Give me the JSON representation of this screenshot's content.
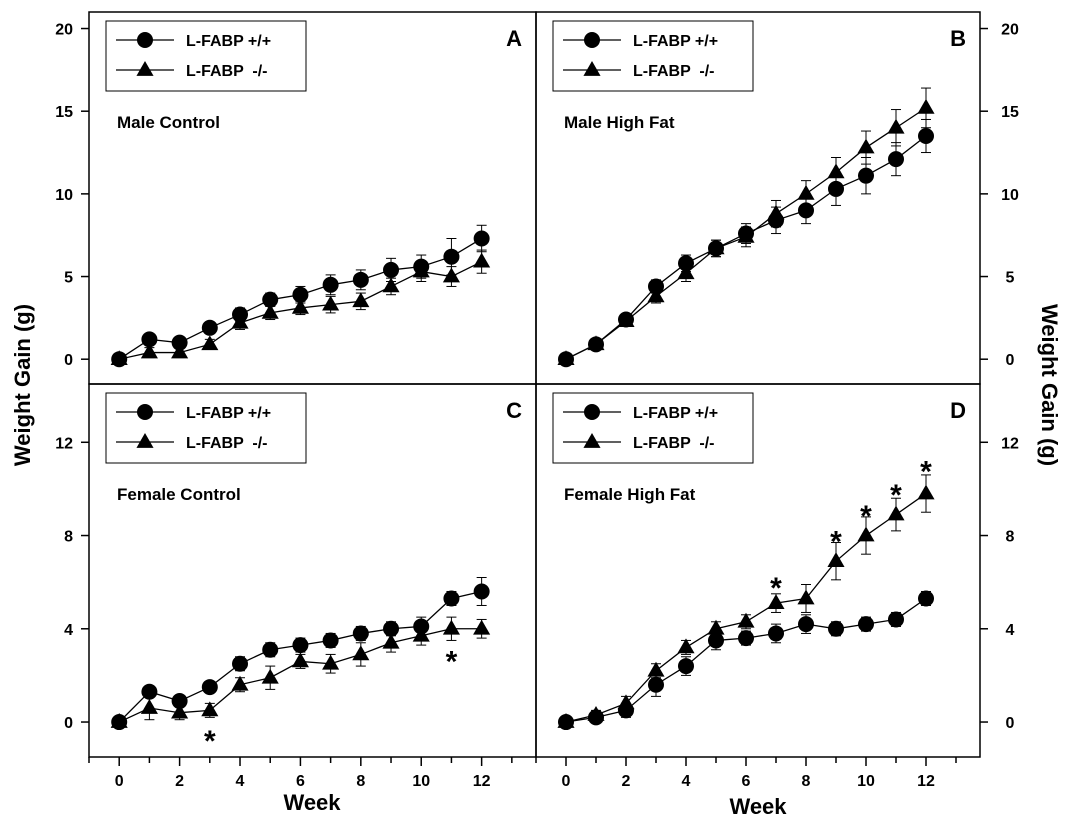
{
  "chart_data": {
    "type": "line",
    "layout": "2x2 grid of panels sharing x axis",
    "xlabel": "Week",
    "ylabel_left": "Weight Gain (g)",
    "ylabel_right": "Weight Gain (g)",
    "x_ticks": [
      0,
      2,
      4,
      6,
      8,
      10,
      12
    ],
    "xlim": [
      -1,
      13.8
    ],
    "legend": [
      "L-FABP +/+",
      "L-FABP  -/-"
    ],
    "legend_position": "top-left of each panel",
    "grid": false,
    "colors": {
      "line": "#000000",
      "marker": "#000000",
      "background": "#ffffff"
    },
    "panels": [
      {
        "letter": "A",
        "title": "Male Control",
        "ylim": [
          -1.5,
          21
        ],
        "y_ticks": [
          0,
          5,
          10,
          15,
          20
        ],
        "series": [
          {
            "name": "L-FABP +/+",
            "marker": "circle",
            "x": [
              0,
              1,
              2,
              3,
              4,
              5,
              6,
              7,
              8,
              9,
              10,
              11,
              12
            ],
            "y": [
              0,
              1.2,
              1.0,
              1.9,
              2.7,
              3.6,
              3.9,
              4.5,
              4.8,
              5.4,
              5.6,
              6.2,
              7.3
            ],
            "err": [
              0.1,
              0.3,
              0.3,
              0.3,
              0.4,
              0.4,
              0.5,
              0.6,
              0.6,
              0.7,
              0.7,
              1.1,
              0.8
            ]
          },
          {
            "name": "L-FABP  -/-",
            "marker": "triangle",
            "x": [
              0,
              1,
              2,
              3,
              4,
              5,
              6,
              7,
              8,
              9,
              10,
              11,
              12
            ],
            "y": [
              0,
              0.4,
              0.4,
              0.9,
              2.2,
              2.8,
              3.1,
              3.3,
              3.5,
              4.4,
              5.3,
              5.0,
              5.9
            ],
            "err": [
              0.1,
              0.3,
              0.3,
              0.3,
              0.4,
              0.4,
              0.4,
              0.5,
              0.5,
              0.5,
              0.6,
              0.6,
              0.7
            ]
          }
        ],
        "significance_marks": []
      },
      {
        "letter": "B",
        "title": "Male High Fat",
        "ylim": [
          -1.5,
          21
        ],
        "y_ticks": [
          0,
          5,
          10,
          15,
          20
        ],
        "series": [
          {
            "name": "L-FABP +/+",
            "marker": "circle",
            "x": [
              0,
              1,
              2,
              3,
              4,
              5,
              6,
              7,
              8,
              9,
              10,
              11,
              12
            ],
            "y": [
              0,
              0.9,
              2.4,
              4.4,
              5.8,
              6.7,
              7.6,
              8.4,
              9.0,
              10.3,
              11.1,
              12.1,
              13.5
            ],
            "err": [
              0.1,
              0.2,
              0.3,
              0.4,
              0.5,
              0.5,
              0.6,
              0.8,
              0.8,
              1.0,
              1.1,
              1.0,
              1.0
            ]
          },
          {
            "name": "L-FABP  -/-",
            "marker": "triangle",
            "x": [
              0,
              1,
              2,
              3,
              4,
              5,
              6,
              7,
              8,
              9,
              10,
              11,
              12
            ],
            "y": [
              0,
              0.9,
              2.3,
              3.8,
              5.2,
              6.7,
              7.4,
              8.8,
              10.0,
              11.3,
              12.8,
              14.0,
              15.2
            ],
            "err": [
              0.1,
              0.2,
              0.3,
              0.4,
              0.5,
              0.5,
              0.6,
              0.8,
              0.8,
              0.9,
              1.0,
              1.1,
              1.2
            ]
          }
        ],
        "significance_marks": []
      },
      {
        "letter": "C",
        "title": "Female Control",
        "ylim": [
          -1.5,
          14.5
        ],
        "y_ticks": [
          0,
          4,
          8,
          12
        ],
        "series": [
          {
            "name": "L-FABP +/+",
            "marker": "circle",
            "x": [
              0,
              1,
              2,
              3,
              4,
              5,
              6,
              7,
              8,
              9,
              10,
              11,
              12
            ],
            "y": [
              0,
              1.3,
              0.9,
              1.5,
              2.5,
              3.1,
              3.3,
              3.5,
              3.8,
              4.0,
              4.1,
              5.3,
              5.6
            ],
            "err": [
              0.1,
              0.2,
              0.2,
              0.2,
              0.3,
              0.3,
              0.3,
              0.3,
              0.3,
              0.3,
              0.4,
              0.3,
              0.6
            ]
          },
          {
            "name": "L-FABP  -/-",
            "marker": "triangle",
            "x": [
              0,
              1,
              2,
              3,
              4,
              5,
              6,
              7,
              8,
              9,
              10,
              11,
              12
            ],
            "y": [
              0,
              0.6,
              0.4,
              0.5,
              1.6,
              1.9,
              2.6,
              2.5,
              2.9,
              3.4,
              3.7,
              4.0,
              4.0
            ],
            "err": [
              0.1,
              0.5,
              0.3,
              0.3,
              0.3,
              0.5,
              0.3,
              0.4,
              0.5,
              0.4,
              0.4,
              0.5,
              0.4
            ]
          }
        ],
        "significance_marks": [
          {
            "x": 3,
            "y": -0.55,
            "label": "*"
          },
          {
            "x": 11,
            "y": 2.85,
            "label": "*"
          }
        ]
      },
      {
        "letter": "D",
        "title": "Female High Fat",
        "ylim": [
          -1.5,
          14.5
        ],
        "y_ticks": [
          0,
          4,
          8,
          12
        ],
        "series": [
          {
            "name": "L-FABP +/+",
            "marker": "circle",
            "x": [
              0,
              1,
              2,
              3,
              4,
              5,
              6,
              7,
              8,
              9,
              10,
              11,
              12
            ],
            "y": [
              0,
              0.2,
              0.5,
              1.6,
              2.4,
              3.5,
              3.6,
              3.8,
              4.2,
              4.0,
              4.2,
              4.4,
              5.3
            ],
            "err": [
              0.1,
              0.2,
              0.3,
              0.5,
              0.4,
              0.4,
              0.3,
              0.4,
              0.4,
              0.3,
              0.3,
              0.3,
              0.3
            ]
          },
          {
            "name": "L-FABP  -/-",
            "marker": "triangle",
            "x": [
              0,
              1,
              2,
              3,
              4,
              5,
              6,
              7,
              8,
              9,
              10,
              11,
              12
            ],
            "y": [
              0,
              0.3,
              0.8,
              2.2,
              3.2,
              4.0,
              4.3,
              5.1,
              5.3,
              6.9,
              8.0,
              8.9,
              9.8
            ],
            "err": [
              0.1,
              0.2,
              0.3,
              0.3,
              0.3,
              0.3,
              0.3,
              0.4,
              0.6,
              0.8,
              0.8,
              0.7,
              0.8
            ]
          }
        ],
        "significance_marks": [
          {
            "x": 7,
            "y": 6.0,
            "label": "*"
          },
          {
            "x": 9,
            "y": 8.0,
            "label": "*"
          },
          {
            "x": 10,
            "y": 9.1,
            "label": "*"
          },
          {
            "x": 11,
            "y": 10.0,
            "label": "*"
          },
          {
            "x": 12,
            "y": 11.0,
            "label": "*"
          }
        ]
      }
    ]
  }
}
